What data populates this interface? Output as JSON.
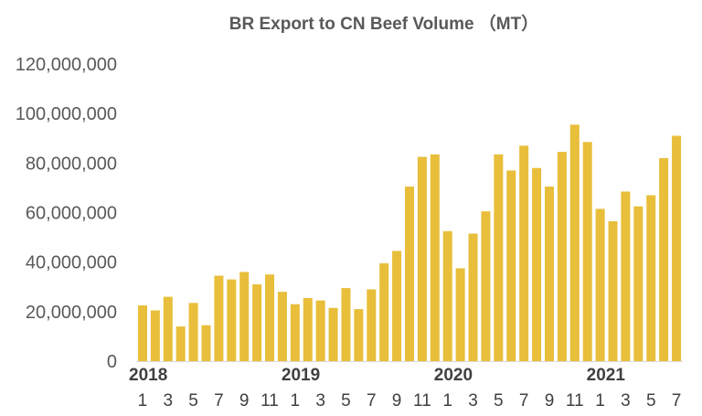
{
  "chart_data": {
    "type": "bar",
    "title": "BR Export to CN Beef Volume  （MT）",
    "xlabel": "",
    "ylabel": "",
    "ylim": [
      0,
      120000000
    ],
    "y_ticks": [
      "0",
      "20,000,000",
      "40,000,000",
      "60,000,000",
      "80,000,000",
      "100,000,000",
      "120,000,000"
    ],
    "grid": false,
    "legend": "none",
    "bar_color": "#E8BE3A",
    "years": [
      {
        "label": "2018",
        "start_index": 0
      },
      {
        "label": "2019",
        "start_index": 12
      },
      {
        "label": "2020",
        "start_index": 24
      },
      {
        "label": "2021",
        "start_index": 36
      }
    ],
    "x_tick_labels": [
      "1",
      "3",
      "5",
      "7",
      "9",
      "11",
      "1",
      "3",
      "5",
      "7",
      "9",
      "11",
      "1",
      "3",
      "5",
      "7",
      "9",
      "11",
      "1",
      "3",
      "5",
      "7"
    ],
    "categories": [
      "2018-1",
      "2018-2",
      "2018-3",
      "2018-4",
      "2018-5",
      "2018-6",
      "2018-7",
      "2018-8",
      "2018-9",
      "2018-10",
      "2018-11",
      "2018-12",
      "2019-1",
      "2019-2",
      "2019-3",
      "2019-4",
      "2019-5",
      "2019-6",
      "2019-7",
      "2019-8",
      "2019-9",
      "2019-10",
      "2019-11",
      "2019-12",
      "2020-1",
      "2020-2",
      "2020-3",
      "2020-4",
      "2020-5",
      "2020-6",
      "2020-7",
      "2020-8",
      "2020-9",
      "2020-10",
      "2020-11",
      "2020-12",
      "2021-1",
      "2021-2",
      "2021-3",
      "2021-4",
      "2021-5",
      "2021-6",
      "2021-7"
    ],
    "values": [
      22500000,
      20500000,
      26000000,
      14000000,
      23500000,
      14500000,
      34500000,
      33000000,
      36000000,
      31000000,
      35000000,
      28000000,
      23000000,
      25500000,
      24500000,
      21500000,
      29500000,
      21000000,
      29000000,
      39500000,
      44500000,
      70500000,
      82500000,
      83500000,
      52500000,
      37500000,
      51500000,
      60500000,
      83500000,
      77000000,
      87000000,
      78000000,
      70500000,
      84500000,
      95500000,
      88500000,
      61500000,
      56500000,
      68500000,
      62500000,
      67000000,
      82000000,
      91000000
    ]
  }
}
